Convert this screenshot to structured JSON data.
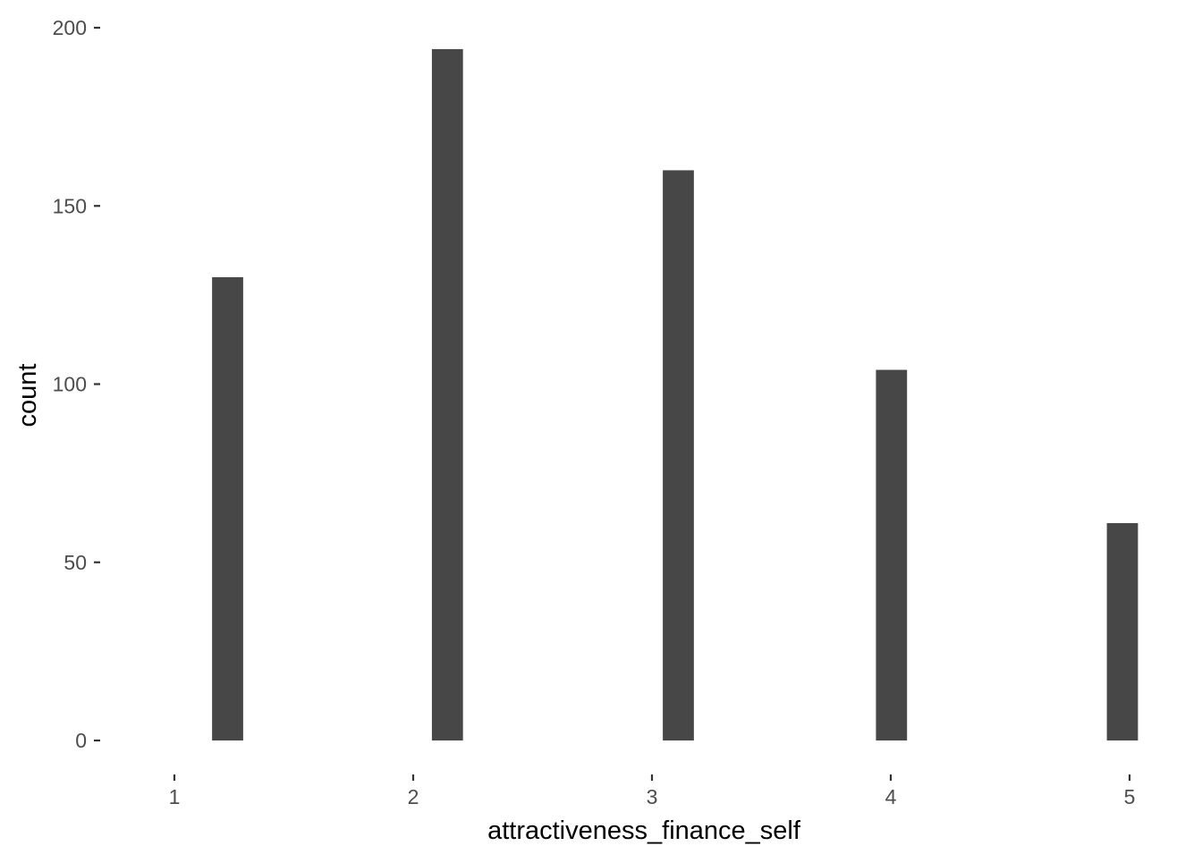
{
  "chart_data": {
    "type": "bar",
    "xlabel": "attractiveness_finance_self",
    "ylabel": "count",
    "x_ticks": [
      "1",
      "2",
      "3",
      "4",
      "5"
    ],
    "y_ticks": [
      "0",
      "50",
      "100",
      "150",
      "200"
    ],
    "xlim": [
      0.72,
      5.03
    ],
    "ylim": [
      0,
      200
    ],
    "grid": false,
    "legend": "none",
    "bar_color": "#474747",
    "tick_color": "#333333",
    "bar_width_units": 0.14,
    "bars": [
      {
        "x": 1.0,
        "count": 130
      },
      {
        "x": 1.99,
        "count": 194
      },
      {
        "x": 3.03,
        "count": 160
      },
      {
        "x": 3.99,
        "count": 104
      },
      {
        "x": 5.03,
        "count": 61
      }
    ]
  }
}
